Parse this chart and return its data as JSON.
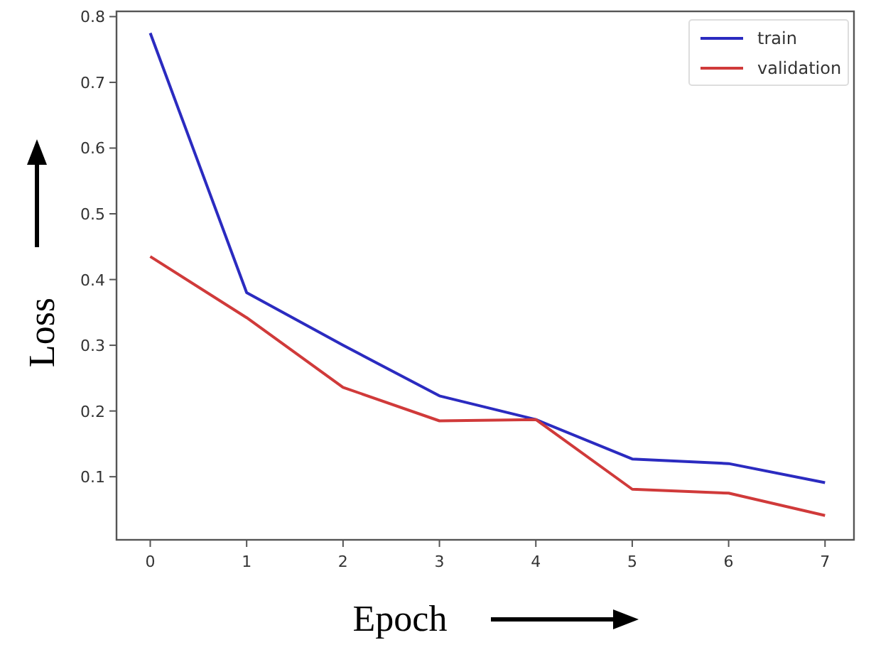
{
  "chart_data": {
    "type": "line",
    "xlabel": "Epoch",
    "ylabel": "Loss",
    "x": [
      0,
      1,
      2,
      3,
      4,
      5,
      6,
      7
    ],
    "series": [
      {
        "name": "train",
        "color": "#2b2bc0",
        "values": [
          0.775,
          0.38,
          0.3,
          0.223,
          0.187,
          0.127,
          0.12,
          0.091
        ]
      },
      {
        "name": "validation",
        "color": "#d03a3a",
        "values": [
          0.435,
          0.342,
          0.236,
          0.185,
          0.187,
          0.081,
          0.075,
          0.041
        ]
      }
    ],
    "xlim": [
      -0.35,
      7.3
    ],
    "ylim": [
      0.004,
      0.808
    ],
    "xticks": [
      0,
      1,
      2,
      3,
      4,
      5,
      6,
      7
    ],
    "yticks": [
      0.1,
      0.2,
      0.3,
      0.4,
      0.5,
      0.6,
      0.7,
      0.8
    ],
    "legend": "top right",
    "grid": false
  }
}
